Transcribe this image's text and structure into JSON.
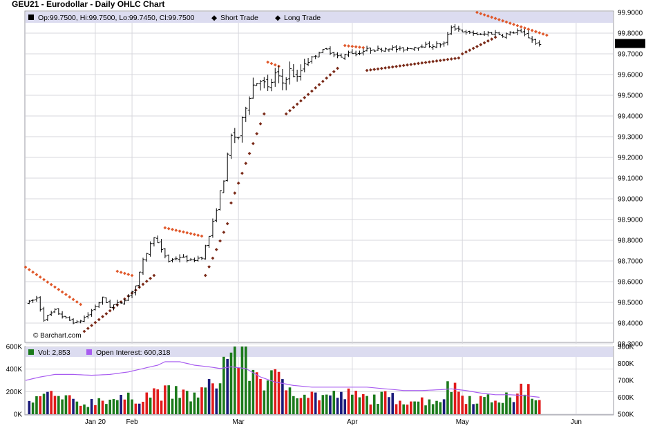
{
  "chart_data": [
    {
      "type": "ohlc",
      "title": "GEU21 - Eurodollar - Daily OHLC Chart",
      "legend": {
        "ohlc_label": "Op:99.7500, Hi:99.7500, Lo:99.7450, Cl:99.7500",
        "short_label": "Short Trade",
        "long_label": "Long Trade"
      },
      "last_price_label": "99.7500",
      "last_price": 99.75,
      "watermark": "© Barchart.com",
      "ylim": [
        98.3,
        99.9
      ],
      "y_ticks": [
        "99.9000",
        "99.8000",
        "99.7000",
        "99.6000",
        "99.5000",
        "99.4000",
        "99.3000",
        "99.2000",
        "99.1000",
        "99.0000",
        "98.9000",
        "98.8000",
        "98.7000",
        "98.6000",
        "98.5000",
        "98.4000",
        "98.3000"
      ],
      "y_tick_values": [
        99.9,
        99.8,
        99.7,
        99.6,
        99.5,
        99.4,
        99.3,
        99.2,
        99.1,
        99.0,
        98.9,
        98.8,
        98.7,
        98.6,
        98.5,
        98.4,
        98.3
      ],
      "x_ticks": [
        "Jan 20",
        "Feb",
        "Mar",
        "Apr",
        "May",
        "Jun"
      ],
      "x_tick_days": [
        21,
        31,
        60,
        91,
        121,
        152
      ],
      "grid": true,
      "x_range_days": [
        2,
        162
      ],
      "ohlc_anchors": [
        [
          3,
          98.5
        ],
        [
          5,
          98.52
        ],
        [
          7,
          98.42
        ],
        [
          10,
          98.46
        ],
        [
          13,
          98.42
        ],
        [
          16,
          98.4
        ],
        [
          19,
          98.44
        ],
        [
          21,
          98.48
        ],
        [
          23,
          98.52
        ],
        [
          25,
          98.48
        ],
        [
          28,
          98.5
        ],
        [
          30,
          98.53
        ],
        [
          32,
          98.58
        ],
        [
          34,
          98.7
        ],
        [
          37,
          98.82
        ],
        [
          39,
          98.75
        ],
        [
          41,
          98.7
        ],
        [
          44,
          98.72
        ],
        [
          47,
          98.7
        ],
        [
          50,
          98.72
        ],
        [
          52,
          98.82
        ],
        [
          54,
          98.95
        ],
        [
          56,
          99.1
        ],
        [
          58,
          99.3
        ],
        [
          60,
          99.3
        ],
        [
          62,
          99.45
        ],
        [
          64,
          99.55
        ],
        [
          66,
          99.58
        ],
        [
          68,
          99.53
        ],
        [
          70,
          99.6
        ],
        [
          72,
          99.56
        ],
        [
          74,
          99.62
        ],
        [
          76,
          99.58
        ],
        [
          78,
          99.66
        ],
        [
          80,
          99.68
        ],
        [
          82,
          99.71
        ],
        [
          84,
          99.72
        ],
        [
          86,
          99.7
        ],
        [
          88,
          99.68
        ],
        [
          90,
          99.71
        ],
        [
          92,
          99.7
        ],
        [
          95,
          99.72
        ],
        [
          98,
          99.72
        ],
        [
          101,
          99.73
        ],
        [
          104,
          99.72
        ],
        [
          107,
          99.73
        ],
        [
          110,
          99.74
        ],
        [
          113,
          99.74
        ],
        [
          116,
          99.75
        ],
        [
          118,
          99.83
        ],
        [
          120,
          99.82
        ],
        [
          122,
          99.8
        ],
        [
          124,
          99.8
        ],
        [
          126,
          99.79
        ],
        [
          128,
          99.8
        ],
        [
          130,
          99.8
        ],
        [
          132,
          99.79
        ],
        [
          134,
          99.8
        ],
        [
          136,
          99.81
        ],
        [
          138,
          99.79
        ],
        [
          140,
          99.77
        ],
        [
          141,
          99.75
        ],
        [
          142,
          99.75
        ]
      ],
      "short_trade_segments": [
        [
          [
            2,
            98.67
          ],
          [
            17,
            98.49
          ]
        ],
        [
          [
            27,
            98.65
          ],
          [
            31,
            98.63
          ]
        ],
        [
          [
            40,
            98.86
          ],
          [
            50,
            98.82
          ]
        ],
        [
          [
            68,
            99.66
          ],
          [
            71,
            99.64
          ]
        ],
        [
          [
            89,
            99.74
          ],
          [
            94,
            99.73
          ]
        ],
        [
          [
            125,
            99.9
          ],
          [
            144,
            99.79
          ]
        ]
      ],
      "long_trade_segments": [
        [
          [
            18,
            98.36
          ],
          [
            37,
            98.63
          ]
        ],
        [
          [
            51,
            98.63
          ],
          [
            57,
            98.88
          ]
        ],
        [
          [
            58,
            98.98
          ],
          [
            67,
            99.41
          ]
        ],
        [
          [
            73,
            99.41
          ],
          [
            87,
            99.63
          ]
        ],
        [
          [
            95,
            99.62
          ],
          [
            120,
            99.68
          ]
        ],
        [
          [
            121,
            99.7
          ],
          [
            130,
            99.78
          ]
        ]
      ],
      "lower_panel": {
        "volume_label": "Vol: 2,853",
        "open_interest_label": "Open Interest: 600,318",
        "vol_ticks": [
          "600K",
          "400K",
          "200K",
          "0K"
        ],
        "vol_tick_values": [
          600000,
          400000,
          200000,
          0
        ],
        "oi_ticks": [
          "900K",
          "800K",
          "700K",
          "600K",
          "500K"
        ],
        "oi_tick_values": [
          900000,
          800000,
          700000,
          600000,
          500000
        ],
        "vol_ylim": [
          0,
          600000
        ],
        "oi_ylim": [
          500000,
          900000
        ],
        "volume_anchors": [
          [
            3,
            110000
          ],
          [
            8,
            170000
          ],
          [
            13,
            130000
          ],
          [
            18,
            90000
          ],
          [
            23,
            140000
          ],
          [
            28,
            130000
          ],
          [
            33,
            150000
          ],
          [
            38,
            200000
          ],
          [
            43,
            180000
          ],
          [
            48,
            160000
          ],
          [
            53,
            250000
          ],
          [
            56,
            440000
          ],
          [
            58,
            570000
          ],
          [
            60,
            560000
          ],
          [
            63,
            420000
          ],
          [
            66,
            330000
          ],
          [
            70,
            300000
          ],
          [
            75,
            230000
          ],
          [
            80,
            170000
          ],
          [
            85,
            160000
          ],
          [
            90,
            170000
          ],
          [
            95,
            140000
          ],
          [
            100,
            150000
          ],
          [
            105,
            130000
          ],
          [
            110,
            120000
          ],
          [
            115,
            130000
          ],
          [
            118,
            270000
          ],
          [
            122,
            150000
          ],
          [
            128,
            130000
          ],
          [
            133,
            140000
          ],
          [
            136,
            160000
          ],
          [
            139,
            280000
          ],
          [
            141,
            100000
          ],
          [
            142,
            110000
          ]
        ],
        "open_interest_anchors": [
          [
            2,
            700000
          ],
          [
            6,
            720000
          ],
          [
            10,
            735000
          ],
          [
            15,
            735000
          ],
          [
            20,
            730000
          ],
          [
            25,
            735000
          ],
          [
            30,
            750000
          ],
          [
            34,
            770000
          ],
          [
            38,
            790000
          ],
          [
            40,
            810000
          ],
          [
            44,
            810000
          ],
          [
            48,
            790000
          ],
          [
            52,
            780000
          ],
          [
            55,
            770000
          ],
          [
            58,
            780000
          ],
          [
            62,
            770000
          ],
          [
            66,
            720000
          ],
          [
            70,
            690000
          ],
          [
            75,
            670000
          ],
          [
            80,
            660000
          ],
          [
            85,
            660000
          ],
          [
            90,
            660000
          ],
          [
            95,
            660000
          ],
          [
            100,
            650000
          ],
          [
            105,
            640000
          ],
          [
            110,
            640000
          ],
          [
            115,
            645000
          ],
          [
            118,
            650000
          ],
          [
            122,
            640000
          ],
          [
            126,
            625000
          ],
          [
            130,
            615000
          ],
          [
            134,
            615000
          ],
          [
            138,
            610000
          ],
          [
            142,
            600000
          ]
        ]
      }
    }
  ],
  "colors": {
    "panel_border": "#9a9aa3",
    "grid": "#d7d7dd",
    "legend_bg": "#dcdcf0",
    "short_trade": "#e0582a",
    "long_trade": "#7a2a18",
    "bar_color": "#000000",
    "vol_up": "#1b7a1b",
    "vol_down": "#e01a1a",
    "vol_neutral": "#1a1a7a",
    "open_interest": "#a85cf0"
  }
}
